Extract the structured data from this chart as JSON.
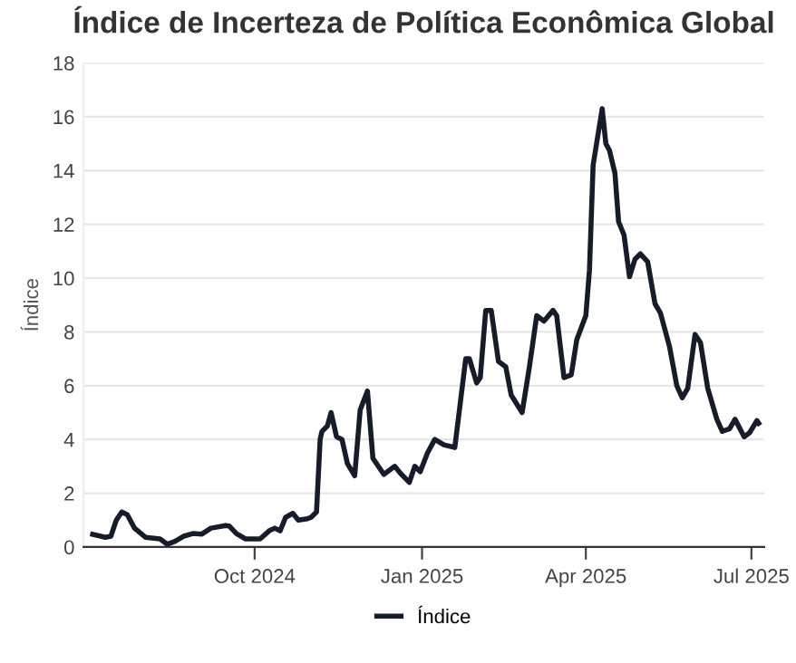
{
  "chart_data": {
    "type": "line",
    "title": "Índice de Incerteza de Política Econômica Global",
    "ylabel": "Índice",
    "x": [
      "2024-07-04",
      "2024-07-11",
      "2024-07-14",
      "2024-07-17",
      "2024-07-20",
      "2024-07-23",
      "2024-07-27",
      "2024-08-02",
      "2024-08-10",
      "2024-08-14",
      "2024-08-18",
      "2024-08-23",
      "2024-08-28",
      "2024-09-02",
      "2024-09-07",
      "2024-09-15",
      "2024-09-17",
      "2024-09-21",
      "2024-09-26",
      "2024-10-04",
      "2024-10-09",
      "2024-10-12",
      "2024-10-15",
      "2024-10-18",
      "2024-10-22",
      "2024-10-25",
      "2024-10-30",
      "2024-11-01",
      "2024-11-04",
      "2024-11-06",
      "2024-11-07",
      "2024-11-10",
      "2024-11-12",
      "2024-11-15",
      "2024-11-18",
      "2024-11-21",
      "2024-11-25",
      "2024-11-28",
      "2024-12-02",
      "2024-12-05",
      "2024-12-11",
      "2024-12-17",
      "2024-12-20",
      "2024-12-25",
      "2024-12-28",
      "2024-12-31",
      "2025-01-04",
      "2025-01-08",
      "2025-01-13",
      "2025-01-19",
      "2025-01-25",
      "2025-01-27",
      "2025-01-31",
      "2025-02-02",
      "2025-02-05",
      "2025-02-08",
      "2025-02-12",
      "2025-02-16",
      "2025-02-19",
      "2025-02-25",
      "2025-03-01",
      "2025-03-05",
      "2025-03-09",
      "2025-03-14",
      "2025-03-16",
      "2025-03-20",
      "2025-03-24",
      "2025-03-27",
      "2025-04-01",
      "2025-04-03",
      "2025-04-05",
      "2025-04-10",
      "2025-04-12",
      "2025-04-14",
      "2025-04-17",
      "2025-04-19",
      "2025-04-22",
      "2025-04-25",
      "2025-04-28",
      "2025-05-01",
      "2025-05-05",
      "2025-05-09",
      "2025-05-12",
      "2025-05-17",
      "2025-05-21",
      "2025-05-24",
      "2025-05-27",
      "2025-05-31",
      "2025-06-03",
      "2025-06-07",
      "2025-06-12",
      "2025-06-15",
      "2025-06-19",
      "2025-06-22",
      "2025-06-27",
      "2025-06-30",
      "2025-07-04",
      "2025-07-05"
    ],
    "series": [
      {
        "name": "Índice",
        "color": "#161c2a",
        "values": [
          0.47,
          0.36,
          0.4,
          1.0,
          1.3,
          1.2,
          0.7,
          0.36,
          0.3,
          0.1,
          0.2,
          0.4,
          0.5,
          0.48,
          0.7,
          0.8,
          0.78,
          0.5,
          0.3,
          0.3,
          0.6,
          0.7,
          0.6,
          1.1,
          1.25,
          1.0,
          1.05,
          1.1,
          1.3,
          4.0,
          4.3,
          4.5,
          5.0,
          4.1,
          4.0,
          3.1,
          2.65,
          5.1,
          5.8,
          3.3,
          2.7,
          3.0,
          2.75,
          2.4,
          3.0,
          2.8,
          3.5,
          4.0,
          3.8,
          3.7,
          7.0,
          7.0,
          6.1,
          6.3,
          8.8,
          8.8,
          6.9,
          6.7,
          5.65,
          5.0,
          6.7,
          8.6,
          8.4,
          8.8,
          8.6,
          6.3,
          6.4,
          7.7,
          8.6,
          10.3,
          14.2,
          16.3,
          15.0,
          14.75,
          13.9,
          12.1,
          11.6,
          10.05,
          10.7,
          10.9,
          10.6,
          9.05,
          8.7,
          7.45,
          6.0,
          5.55,
          5.9,
          7.9,
          7.6,
          5.9,
          4.75,
          4.3,
          4.4,
          4.75,
          4.1,
          4.25,
          4.7,
          4.6
        ]
      }
    ],
    "xlim": [
      "2024-06-29",
      "2025-07-08"
    ],
    "xticks": [
      {
        "value": "2024-10-01",
        "label": "Oct 2024"
      },
      {
        "value": "2025-01-01",
        "label": "Jan 2025"
      },
      {
        "value": "2025-04-01",
        "label": "Apr 2025"
      },
      {
        "value": "2025-07-01",
        "label": "Jul 2025"
      }
    ],
    "ylim": [
      0,
      18
    ],
    "yticks": [
      0,
      2,
      4,
      6,
      8,
      10,
      12,
      14,
      16,
      18
    ],
    "grid": "y",
    "legend": "bottom",
    "marker": "none",
    "line_style": "solid"
  }
}
